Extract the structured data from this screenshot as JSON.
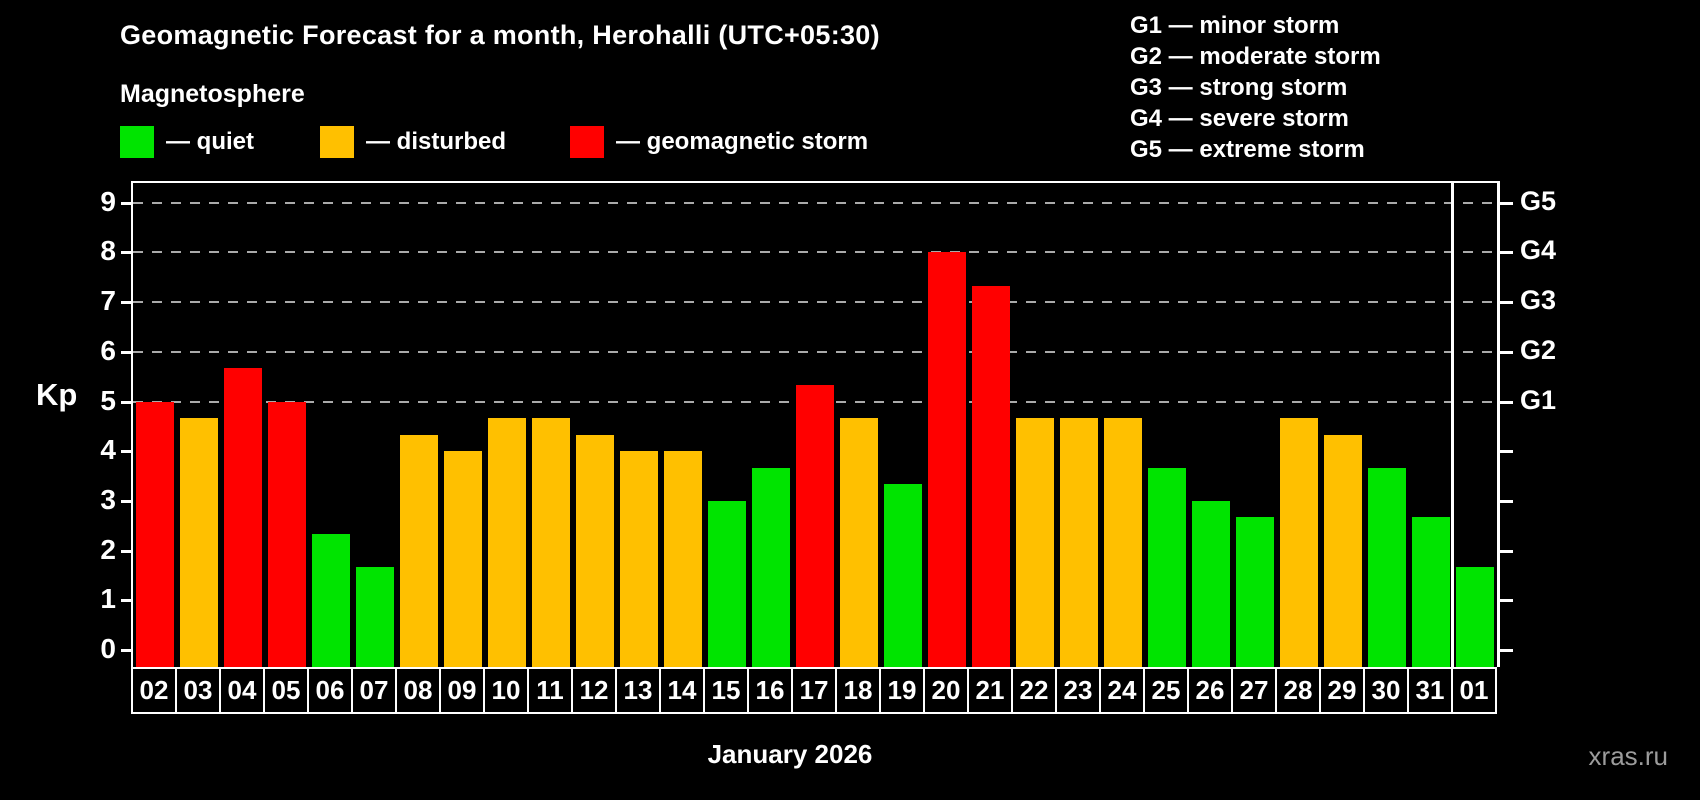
{
  "header": {
    "title": "Geomagnetic Forecast for a month, Herohalli (UTC+05:30)",
    "subtitle": "Magnetosphere"
  },
  "legend": {
    "items": [
      {
        "key": "quiet",
        "label": "— quiet",
        "color": "#00e400"
      },
      {
        "key": "disturbed",
        "label": "— disturbed",
        "color": "#ffc000"
      },
      {
        "key": "storm",
        "label": "— geomagnetic storm",
        "color": "#ff0000"
      }
    ]
  },
  "storm_scale_legend": {
    "items": [
      "G1 — minor storm",
      "G2 — moderate storm",
      "G3 — strong storm",
      "G4 — severe storm",
      "G5 — extreme storm"
    ]
  },
  "chart_data": {
    "type": "bar",
    "title": "Geomagnetic Forecast for a month, Herohalli (UTC+05:30)",
    "ylabel": "Kp",
    "xlabel": "January 2026",
    "ylim": [
      0,
      9
    ],
    "y_ticks": [
      0,
      1,
      2,
      3,
      4,
      5,
      6,
      7,
      8,
      9
    ],
    "gridlines": [
      5,
      6,
      7,
      8,
      9
    ],
    "grid_style": "dashed",
    "legend_position": "top",
    "categories": [
      "02",
      "03",
      "04",
      "05",
      "06",
      "07",
      "08",
      "09",
      "10",
      "11",
      "12",
      "13",
      "14",
      "15",
      "16",
      "17",
      "18",
      "19",
      "20",
      "21",
      "22",
      "23",
      "24",
      "25",
      "26",
      "27",
      "28",
      "29",
      "30",
      "31",
      "01"
    ],
    "values": [
      5,
      4.67,
      5.67,
      5,
      2.33,
      1.67,
      4.33,
      4,
      4.67,
      4.67,
      4.33,
      4,
      4,
      3,
      3.67,
      5.33,
      4.67,
      3.33,
      8,
      7.33,
      4.67,
      4.67,
      4.67,
      3.67,
      3,
      2.67,
      4.67,
      4.33,
      3.67,
      2.67,
      1.67
    ],
    "statuses": [
      "storm",
      "disturbed",
      "storm",
      "storm",
      "quiet",
      "quiet",
      "disturbed",
      "disturbed",
      "disturbed",
      "disturbed",
      "disturbed",
      "disturbed",
      "disturbed",
      "quiet",
      "quiet",
      "storm",
      "disturbed",
      "quiet",
      "storm",
      "storm",
      "disturbed",
      "disturbed",
      "disturbed",
      "quiet",
      "quiet",
      "quiet",
      "disturbed",
      "disturbed",
      "quiet",
      "quiet",
      "quiet"
    ],
    "colors": {
      "quiet": "#00e400",
      "disturbed": "#ffc000",
      "storm": "#ff0000"
    },
    "right_axis_labels": [
      {
        "value": 5,
        "label": "G1"
      },
      {
        "value": 6,
        "label": "G2"
      },
      {
        "value": 7,
        "label": "G3"
      },
      {
        "value": 8,
        "label": "G4"
      },
      {
        "value": 9,
        "label": "G5"
      }
    ],
    "month_separator_before": "01"
  },
  "footer": {
    "xaxis_title": "January 2026",
    "watermark": "xras.ru"
  }
}
